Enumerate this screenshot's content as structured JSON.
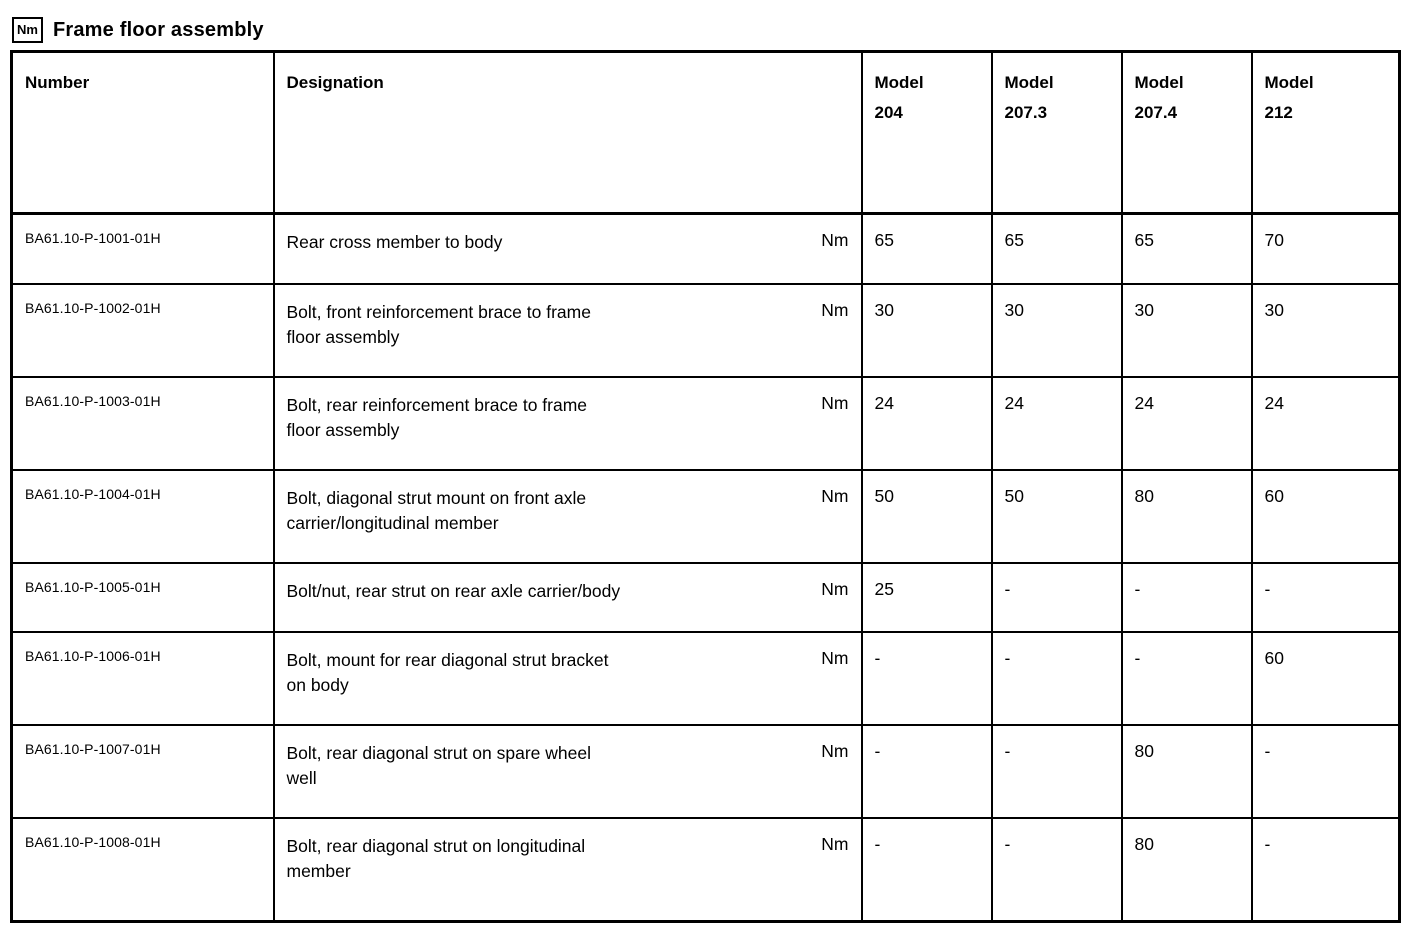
{
  "page": {
    "title": "Frame floor assembly",
    "title_icon": "Nm"
  },
  "table": {
    "headers": {
      "number": "Number",
      "designation": "Designation",
      "models": [
        "Model\n204",
        "Model\n207.3",
        "Model\n207.4",
        "Model\n212"
      ]
    },
    "rows": [
      {
        "number": "BA61.10-P-1001-01H",
        "designation": "Rear cross member to body",
        "unit": "Nm",
        "values": [
          "65",
          "65",
          "65",
          "70"
        ]
      },
      {
        "number": "BA61.10-P-1002-01H",
        "designation": "Bolt, front reinforcement brace to frame\nfloor assembly",
        "unit": "Nm",
        "values": [
          "30",
          "30",
          "30",
          "30"
        ]
      },
      {
        "number": "BA61.10-P-1003-01H",
        "designation": "Bolt, rear reinforcement brace to frame\nfloor assembly",
        "unit": "Nm",
        "values": [
          "24",
          "24",
          "24",
          "24"
        ]
      },
      {
        "number": "BA61.10-P-1004-01H",
        "designation": "Bolt, diagonal strut mount on front axle\ncarrier/longitudinal member",
        "unit": "Nm",
        "values": [
          "50",
          "50",
          "80",
          "60"
        ]
      },
      {
        "number": "BA61.10-P-1005-01H",
        "designation": "Bolt/nut, rear strut on rear axle carrier/body",
        "unit": "Nm",
        "values": [
          "25",
          "-",
          "-",
          "-"
        ]
      },
      {
        "number": "BA61.10-P-1006-01H",
        "designation": "Bolt, mount for rear diagonal strut bracket\non body",
        "unit": "Nm",
        "values": [
          "-",
          "-",
          "-",
          "60"
        ]
      },
      {
        "number": "BA61.10-P-1007-01H",
        "designation": "Bolt, rear diagonal strut on spare wheel\nwell",
        "unit": "Nm",
        "values": [
          "-",
          "-",
          "80",
          "-"
        ]
      },
      {
        "number": "BA61.10-P-1008-01H",
        "designation": "Bolt, rear diagonal strut on longitudinal\nmember",
        "unit": "Nm",
        "values": [
          "-",
          "-",
          "80",
          "-"
        ]
      }
    ],
    "colors": {
      "border": "#000000",
      "text": "#000000",
      "background": "#ffffff"
    }
  }
}
